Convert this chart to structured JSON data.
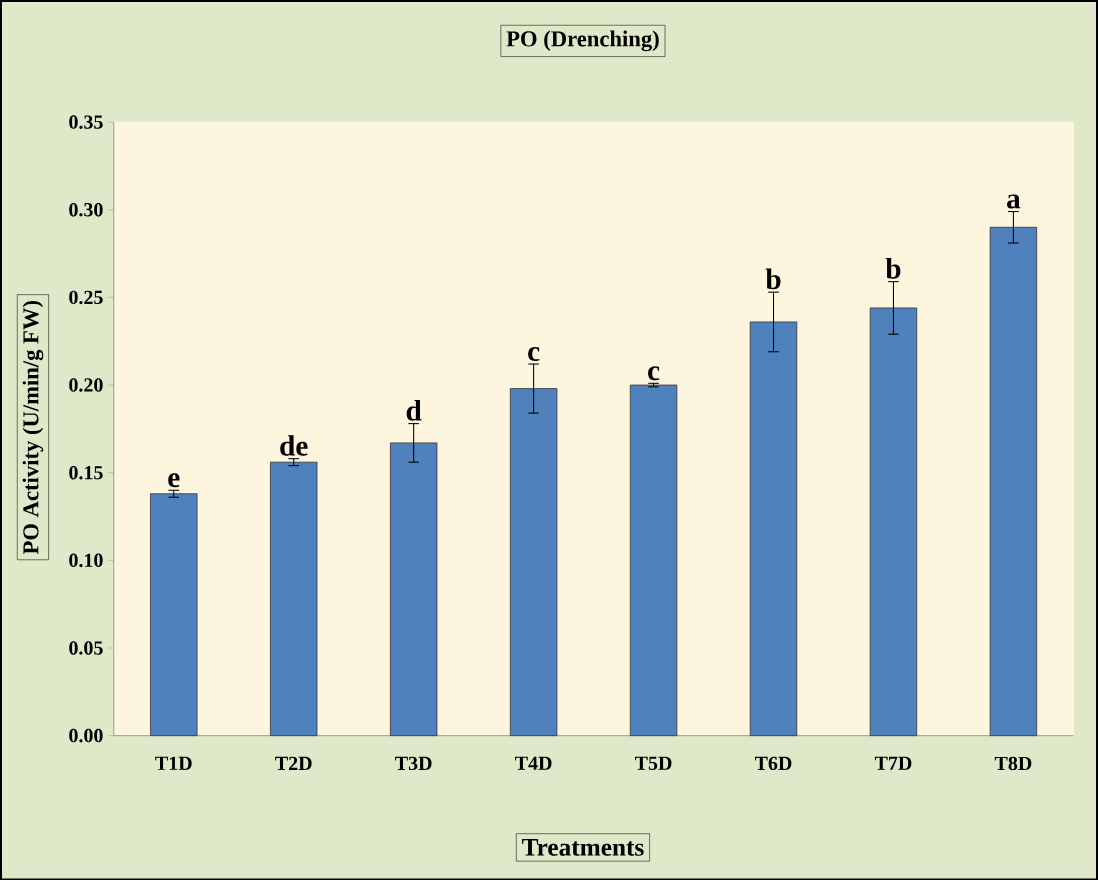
{
  "chart_data": {
    "type": "bar",
    "title": "PO (Drenching)",
    "xlabel": "Treatments",
    "ylabel": "PO Activity (U/min/g FW)",
    "categories": [
      "T1D",
      "T2D",
      "T3D",
      "T4D",
      "T5D",
      "T6D",
      "T7D",
      "T8D"
    ],
    "values": [
      0.138,
      0.156,
      0.167,
      0.198,
      0.2,
      0.236,
      0.244,
      0.29
    ],
    "errors": [
      0.002,
      0.002,
      0.011,
      0.014,
      0.001,
      0.017,
      0.015,
      0.009
    ],
    "color": "#4f81bd",
    "ylim": [
      0,
      0.35
    ],
    "yticks": [
      {
        "value": 0,
        "label": "0.00"
      },
      {
        "value": 0.05,
        "label": "0.05"
      },
      {
        "value": 0.1,
        "label": "0.10"
      },
      {
        "value": 0.15,
        "label": "0.15"
      },
      {
        "value": 0.2,
        "label": "0.20"
      },
      {
        "value": 0.25,
        "label": "0.25"
      },
      {
        "value": 0.3,
        "label": "0.30"
      },
      {
        "value": 0.35,
        "label": "0.35"
      }
    ],
    "annotations": [
      {
        "text": "e",
        "x": "T1D",
        "y": 0.14
      },
      {
        "text": "de",
        "x": "T2D",
        "y": 0.158
      },
      {
        "text": "d",
        "x": "T3D",
        "y": 0.178
      },
      {
        "text": "c",
        "x": "T4D",
        "y": 0.212
      },
      {
        "text": "c",
        "x": "T5D",
        "y": 0.201
      },
      {
        "text": "b",
        "x": "T6D",
        "y": 0.253
      },
      {
        "text": "b",
        "x": "T7D",
        "y": 0.259
      },
      {
        "text": "a",
        "x": "T8D",
        "y": 0.299
      }
    ]
  }
}
